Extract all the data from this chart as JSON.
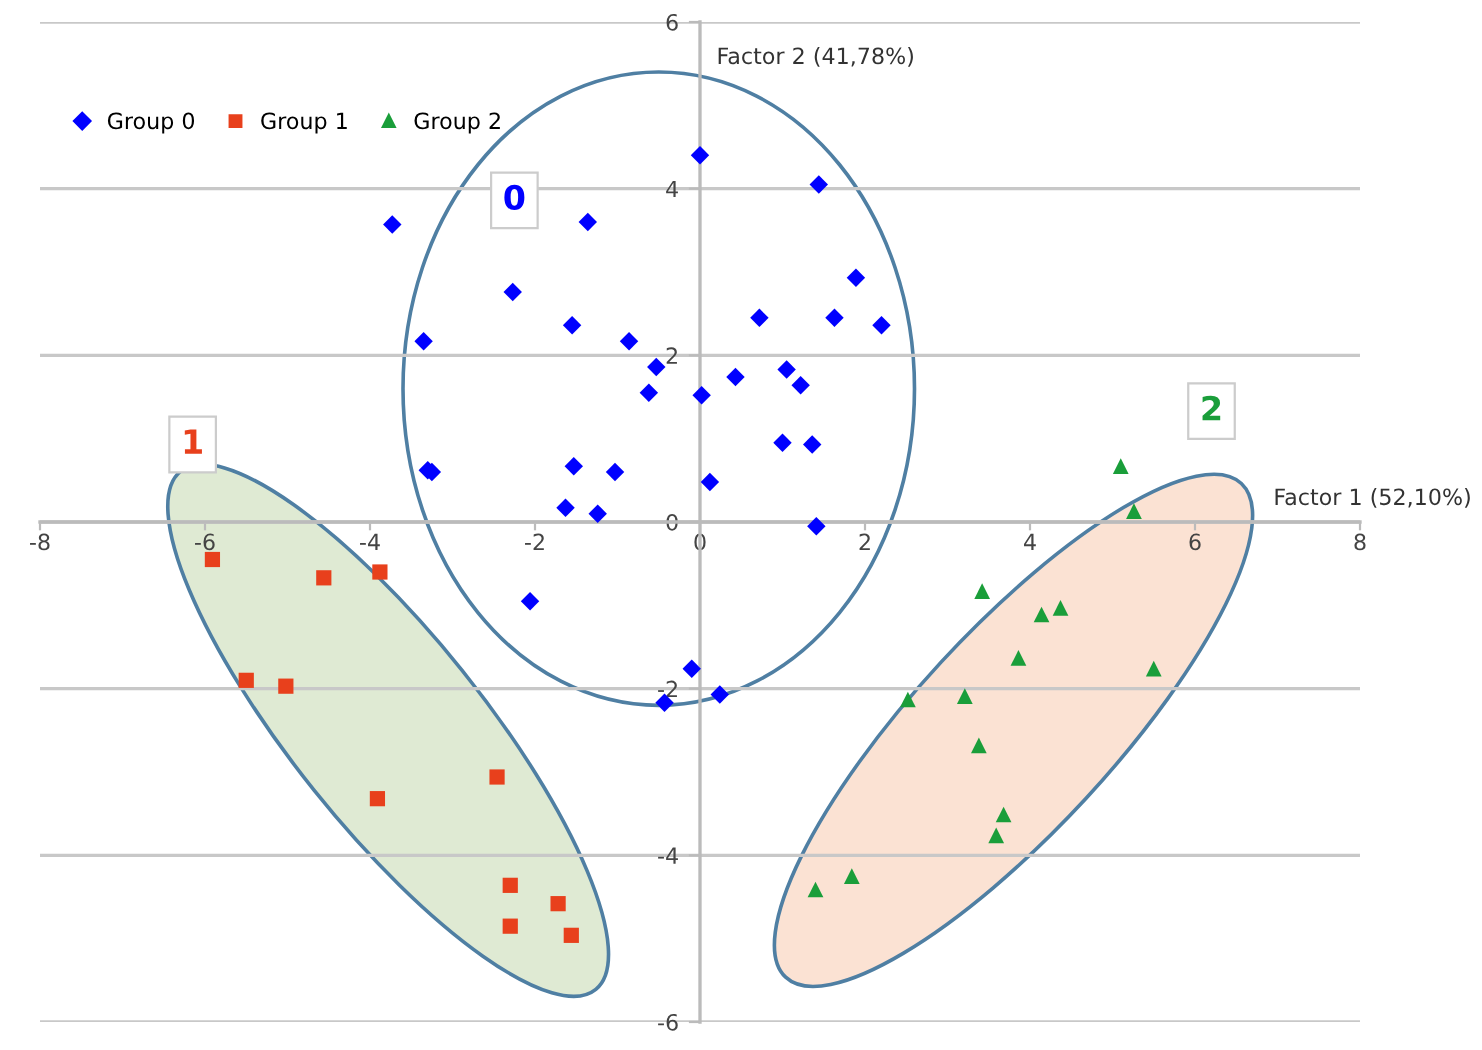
{
  "chart_data": {
    "type": "scatter",
    "xlabel": "Factor 1 (52,10%)",
    "ylabel": "Factor 2 (41,78%)",
    "xlim": [
      -8,
      8
    ],
    "ylim": [
      -6,
      6
    ],
    "xticks": [
      -8,
      -6,
      -4,
      -2,
      0,
      2,
      4,
      6,
      8
    ],
    "yticks": [
      -6,
      -4,
      -2,
      0,
      2,
      4,
      6
    ],
    "grid": "y",
    "legend": "top left",
    "series": [
      {
        "name": "Group 0",
        "color": "#0000ff",
        "marker": "diamond",
        "x": [
          -3.73,
          -1.36,
          0.0,
          1.44,
          -2.27,
          -3.35,
          -1.55,
          -0.86,
          -0.53,
          -0.62,
          0.02,
          0.43,
          0.72,
          1.05,
          1.22,
          1.89,
          1.63,
          2.2,
          1.0,
          1.36,
          -3.3,
          -3.25,
          -1.53,
          -1.03,
          -1.63,
          -1.24,
          0.12,
          1.41,
          -2.06,
          -0.1,
          -0.43,
          0.24
        ],
        "values": [
          3.57,
          3.6,
          4.4,
          4.05,
          2.76,
          2.17,
          2.36,
          2.17,
          1.86,
          1.55,
          1.52,
          1.74,
          2.45,
          1.83,
          1.64,
          2.93,
          2.45,
          2.36,
          0.95,
          0.93,
          0.62,
          0.6,
          0.67,
          0.6,
          0.17,
          0.1,
          0.48,
          -0.05,
          -0.95,
          -1.76,
          -2.17,
          -2.07
        ]
      },
      {
        "name": "Group 1",
        "color": "#e8401c",
        "marker": "square",
        "x": [
          -5.91,
          -4.56,
          -3.88,
          -5.5,
          -5.02,
          -3.91,
          -2.46,
          -2.3,
          -1.72,
          -2.3,
          -1.56
        ],
        "values": [
          -0.45,
          -0.67,
          -0.6,
          -1.9,
          -1.97,
          -3.32,
          -3.06,
          -4.36,
          -4.58,
          -4.85,
          -4.96
        ]
      },
      {
        "name": "Group 2",
        "color": "#1a9e3a",
        "marker": "triangle",
        "x": [
          5.1,
          5.26,
          3.42,
          4.14,
          4.37,
          3.86,
          5.5,
          2.52,
          3.21,
          3.38,
          3.68,
          3.59,
          1.84,
          1.4
        ],
        "values": [
          0.67,
          0.13,
          -0.83,
          -1.11,
          -1.03,
          -1.63,
          -1.76,
          -2.13,
          -2.09,
          -2.68,
          -3.51,
          -3.76,
          -4.25,
          -4.41
        ]
      }
    ],
    "annotations": [
      {
        "text": "0",
        "x": -2.25,
        "y": 3.86
      },
      {
        "text": "1",
        "x": -6.15,
        "y": 0.93
      },
      {
        "text": "2",
        "x": 6.2,
        "y": 1.33
      }
    ]
  }
}
